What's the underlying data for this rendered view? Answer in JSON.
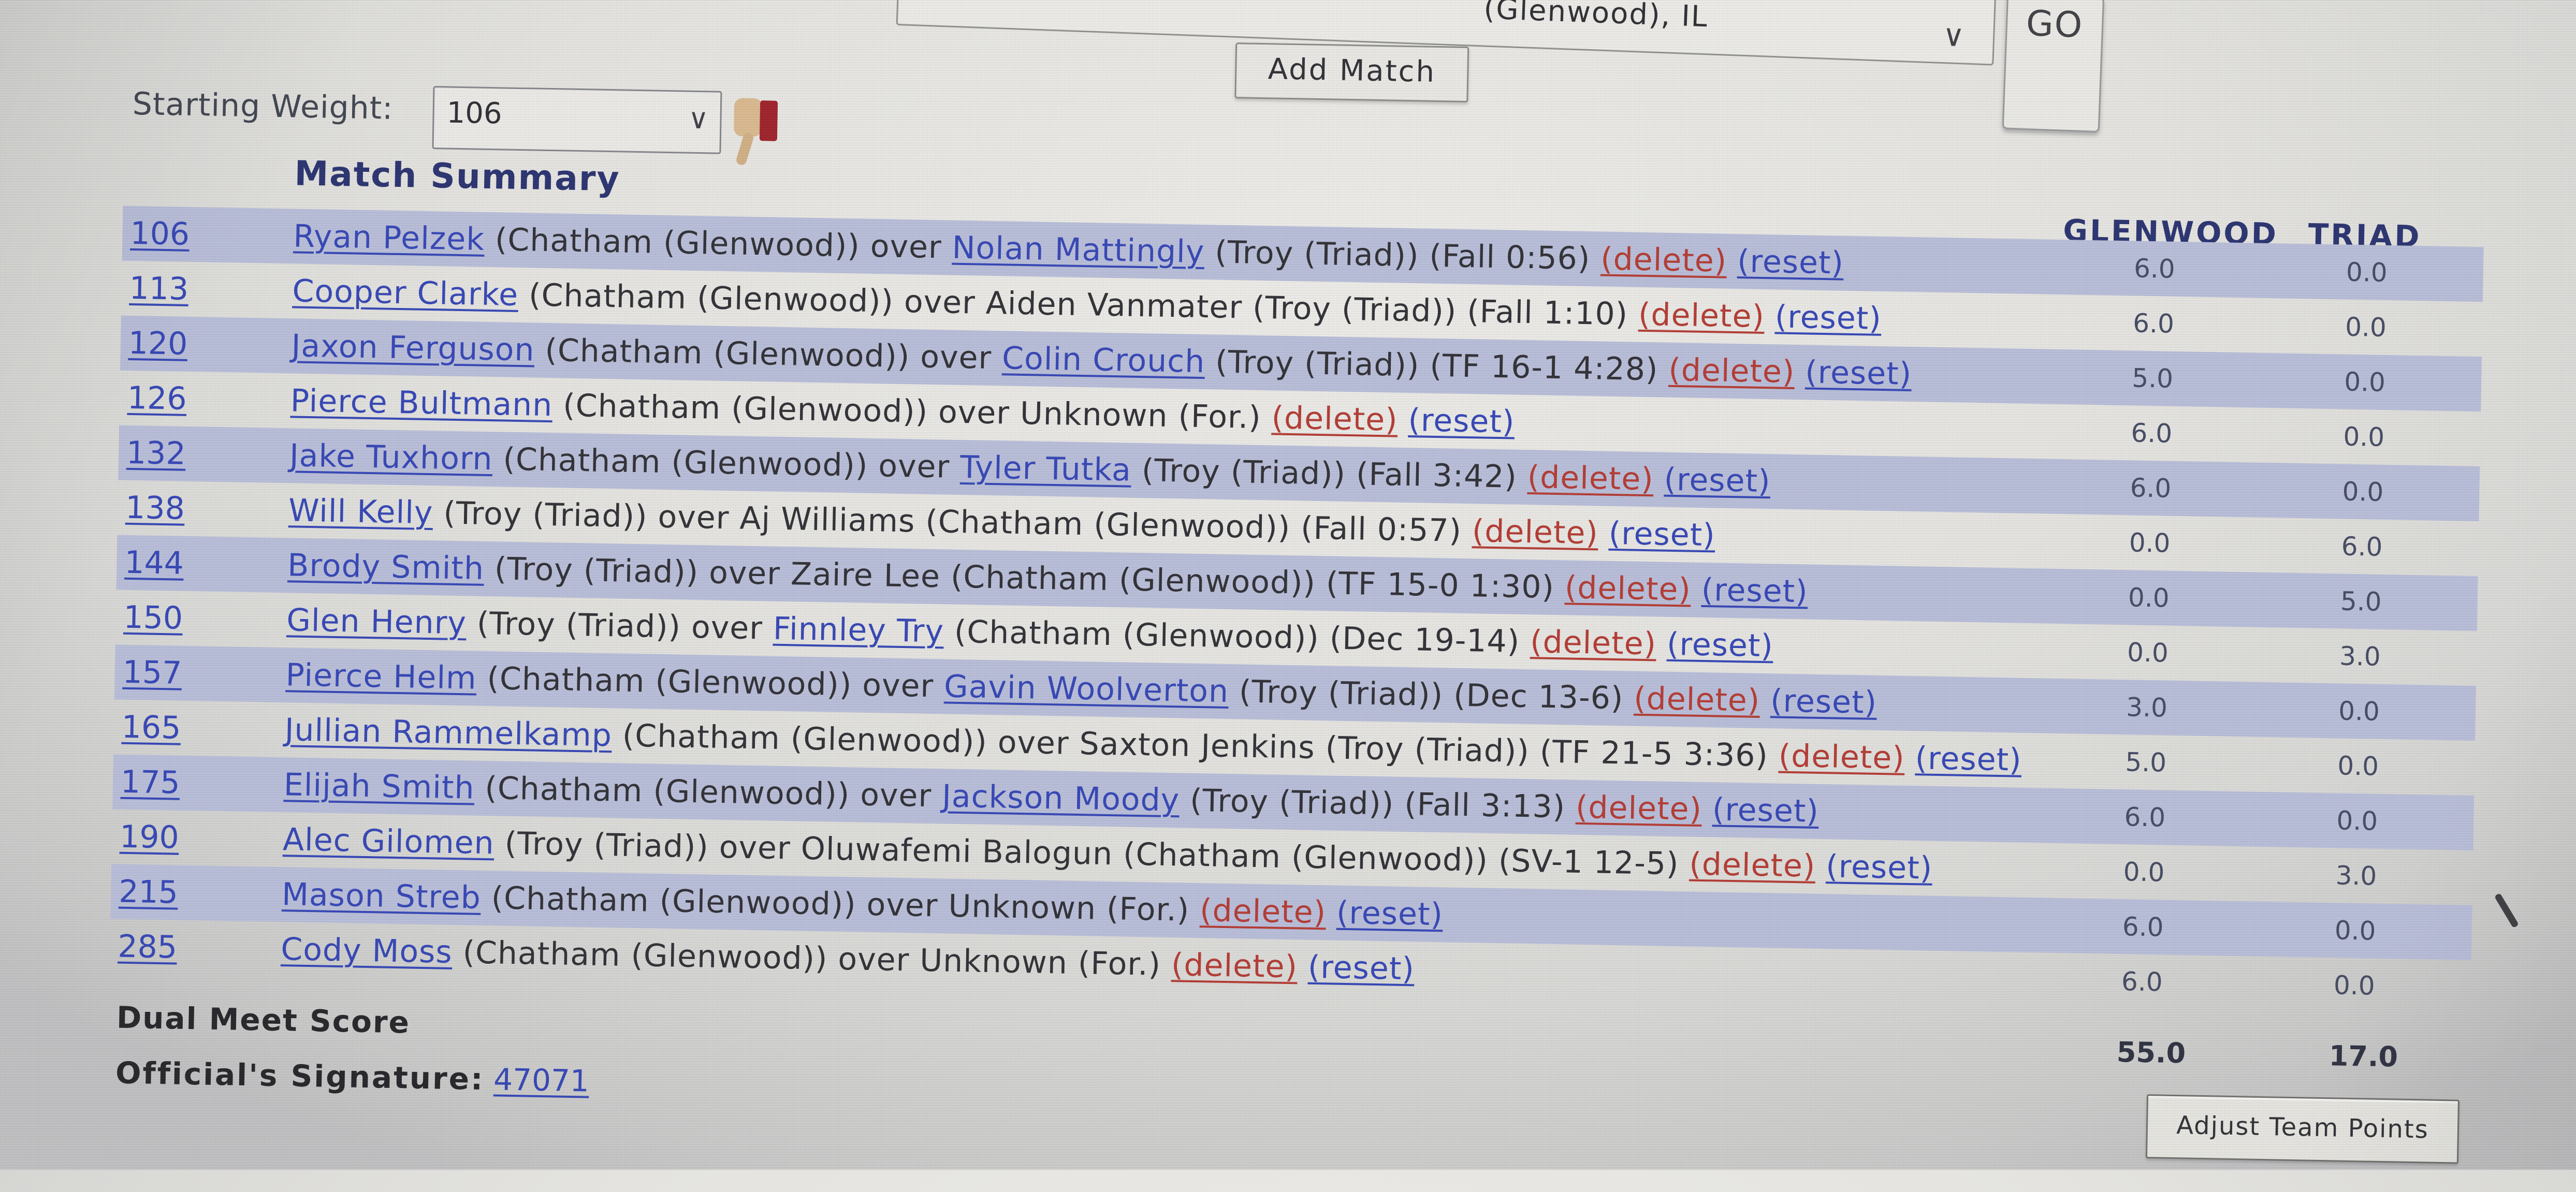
{
  "colors": {
    "band": "#b8bdd8",
    "link_blue": "#3344b4",
    "delete_red": "#b23931",
    "header_navy": "#28316e"
  },
  "top": {
    "dropdown_value": "(Glenwood), IL",
    "go_label": "GO",
    "add_match_label": "Add Match"
  },
  "starting_weight": {
    "label": "Starting Weight:",
    "value": "106"
  },
  "table": {
    "title": "Match Summary",
    "team_columns": [
      "GLENWOOD",
      "TRIAD"
    ],
    "rows": [
      {
        "weight": "106",
        "scores": [
          "6.0",
          "0.0"
        ],
        "segments": [
          {
            "t": "Ryan Pelzek",
            "k": "link"
          },
          {
            "t": " (Chatham (Glenwood)) over ",
            "k": "text"
          },
          {
            "t": "Nolan Mattingly",
            "k": "link"
          },
          {
            "t": " (Troy (Triad)) (Fall 0:56) ",
            "k": "text"
          },
          {
            "t": "(delete)",
            "k": "delete"
          },
          {
            "t": " ",
            "k": "text"
          },
          {
            "t": "(reset)",
            "k": "reset"
          }
        ]
      },
      {
        "weight": "113",
        "scores": [
          "6.0",
          "0.0"
        ],
        "segments": [
          {
            "t": "Cooper Clarke",
            "k": "link"
          },
          {
            "t": " (Chatham (Glenwood)) over Aiden Vanmater (Troy (Triad)) (Fall 1:10) ",
            "k": "text"
          },
          {
            "t": "(delete)",
            "k": "delete"
          },
          {
            "t": " ",
            "k": "text"
          },
          {
            "t": "(reset)",
            "k": "reset"
          }
        ]
      },
      {
        "weight": "120",
        "scores": [
          "5.0",
          "0.0"
        ],
        "segments": [
          {
            "t": "Jaxon Ferguson",
            "k": "link"
          },
          {
            "t": " (Chatham (Glenwood)) over ",
            "k": "text"
          },
          {
            "t": "Colin Crouch",
            "k": "link"
          },
          {
            "t": " (Troy (Triad)) (TF 16-1 4:28) ",
            "k": "text"
          },
          {
            "t": "(delete)",
            "k": "delete"
          },
          {
            "t": " ",
            "k": "text"
          },
          {
            "t": "(reset)",
            "k": "reset"
          }
        ]
      },
      {
        "weight": "126",
        "scores": [
          "6.0",
          "0.0"
        ],
        "segments": [
          {
            "t": "Pierce Bultmann",
            "k": "link"
          },
          {
            "t": " (Chatham (Glenwood)) over Unknown (For.) ",
            "k": "text"
          },
          {
            "t": "(delete)",
            "k": "delete"
          },
          {
            "t": " ",
            "k": "text"
          },
          {
            "t": "(reset)",
            "k": "reset"
          }
        ]
      },
      {
        "weight": "132",
        "scores": [
          "6.0",
          "0.0"
        ],
        "segments": [
          {
            "t": "Jake Tuxhorn",
            "k": "link"
          },
          {
            "t": " (Chatham (Glenwood)) over ",
            "k": "text"
          },
          {
            "t": "Tyler Tutka",
            "k": "link"
          },
          {
            "t": " (Troy (Triad)) (Fall 3:42) ",
            "k": "text"
          },
          {
            "t": "(delete)",
            "k": "delete"
          },
          {
            "t": " ",
            "k": "text"
          },
          {
            "t": "(reset)",
            "k": "reset"
          }
        ]
      },
      {
        "weight": "138",
        "scores": [
          "0.0",
          "6.0"
        ],
        "segments": [
          {
            "t": "Will Kelly",
            "k": "link"
          },
          {
            "t": " (Troy (Triad)) over Aj Williams (Chatham (Glenwood)) (Fall 0:57) ",
            "k": "text"
          },
          {
            "t": "(delete)",
            "k": "delete"
          },
          {
            "t": " ",
            "k": "text"
          },
          {
            "t": "(reset)",
            "k": "reset"
          }
        ]
      },
      {
        "weight": "144",
        "scores": [
          "0.0",
          "5.0"
        ],
        "segments": [
          {
            "t": "Brody Smith",
            "k": "link"
          },
          {
            "t": " (Troy (Triad)) over Zaire Lee (Chatham (Glenwood)) (TF 15-0 1:30) ",
            "k": "text"
          },
          {
            "t": "(delete)",
            "k": "delete"
          },
          {
            "t": " ",
            "k": "text"
          },
          {
            "t": "(reset)",
            "k": "reset"
          }
        ]
      },
      {
        "weight": "150",
        "scores": [
          "0.0",
          "3.0"
        ],
        "segments": [
          {
            "t": "Glen Henry",
            "k": "link"
          },
          {
            "t": " (Troy (Triad)) over ",
            "k": "text"
          },
          {
            "t": "Finnley Try",
            "k": "link"
          },
          {
            "t": " (Chatham (Glenwood)) (Dec 19-14) ",
            "k": "text"
          },
          {
            "t": "(delete)",
            "k": "delete"
          },
          {
            "t": " ",
            "k": "text"
          },
          {
            "t": "(reset)",
            "k": "reset"
          }
        ]
      },
      {
        "weight": "157",
        "scores": [
          "3.0",
          "0.0"
        ],
        "segments": [
          {
            "t": "Pierce Helm",
            "k": "link"
          },
          {
            "t": " (Chatham (Glenwood)) over ",
            "k": "text"
          },
          {
            "t": "Gavin Woolverton",
            "k": "link"
          },
          {
            "t": " (Troy (Triad)) (Dec 13-6) ",
            "k": "text"
          },
          {
            "t": "(delete)",
            "k": "delete"
          },
          {
            "t": " ",
            "k": "text"
          },
          {
            "t": "(reset)",
            "k": "reset"
          }
        ]
      },
      {
        "weight": "165",
        "scores": [
          "5.0",
          "0.0"
        ],
        "segments": [
          {
            "t": "Jullian Rammelkamp",
            "k": "link"
          },
          {
            "t": " (Chatham (Glenwood)) over Saxton Jenkins (Troy (Triad)) (TF 21-5 3:36) ",
            "k": "text"
          },
          {
            "t": "(delete)",
            "k": "delete"
          },
          {
            "t": " ",
            "k": "text"
          },
          {
            "t": "(reset)",
            "k": "reset"
          }
        ]
      },
      {
        "weight": "175",
        "scores": [
          "6.0",
          "0.0"
        ],
        "segments": [
          {
            "t": "Elijah Smith",
            "k": "link"
          },
          {
            "t": " (Chatham (Glenwood)) over ",
            "k": "text"
          },
          {
            "t": "Jackson Moody",
            "k": "link"
          },
          {
            "t": " (Troy (Triad)) (Fall 3:13) ",
            "k": "text"
          },
          {
            "t": "(delete)",
            "k": "delete"
          },
          {
            "t": " ",
            "k": "text"
          },
          {
            "t": "(reset)",
            "k": "reset"
          }
        ]
      },
      {
        "weight": "190",
        "scores": [
          "0.0",
          "3.0"
        ],
        "segments": [
          {
            "t": "Alec Gilomen",
            "k": "link"
          },
          {
            "t": " (Troy (Triad)) over Oluwafemi Balogun (Chatham (Glenwood)) (SV-1 12-5) ",
            "k": "text"
          },
          {
            "t": "(delete)",
            "k": "delete"
          },
          {
            "t": " ",
            "k": "text"
          },
          {
            "t": "(reset)",
            "k": "reset"
          }
        ]
      },
      {
        "weight": "215",
        "scores": [
          "6.0",
          "0.0"
        ],
        "segments": [
          {
            "t": "Mason Streb",
            "k": "link"
          },
          {
            "t": " (Chatham (Glenwood)) over Unknown (For.) ",
            "k": "text"
          },
          {
            "t": "(delete)",
            "k": "delete"
          },
          {
            "t": " ",
            "k": "text"
          },
          {
            "t": "(reset)",
            "k": "reset"
          }
        ]
      },
      {
        "weight": "285",
        "scores": [
          "6.0",
          "0.0"
        ],
        "segments": [
          {
            "t": "Cody Moss",
            "k": "link"
          },
          {
            "t": " (Chatham (Glenwood)) over Unknown (For.) ",
            "k": "text"
          },
          {
            "t": "(delete)",
            "k": "delete"
          },
          {
            "t": " ",
            "k": "text"
          },
          {
            "t": "(reset)",
            "k": "reset"
          }
        ]
      }
    ],
    "dual_meet": {
      "label": "Dual Meet Score",
      "totals": [
        "55.0",
        "17.0"
      ]
    },
    "signature": {
      "label": "Official's Signature:",
      "value": "47071"
    },
    "adjust_button_label": "Adjust Team Points"
  }
}
